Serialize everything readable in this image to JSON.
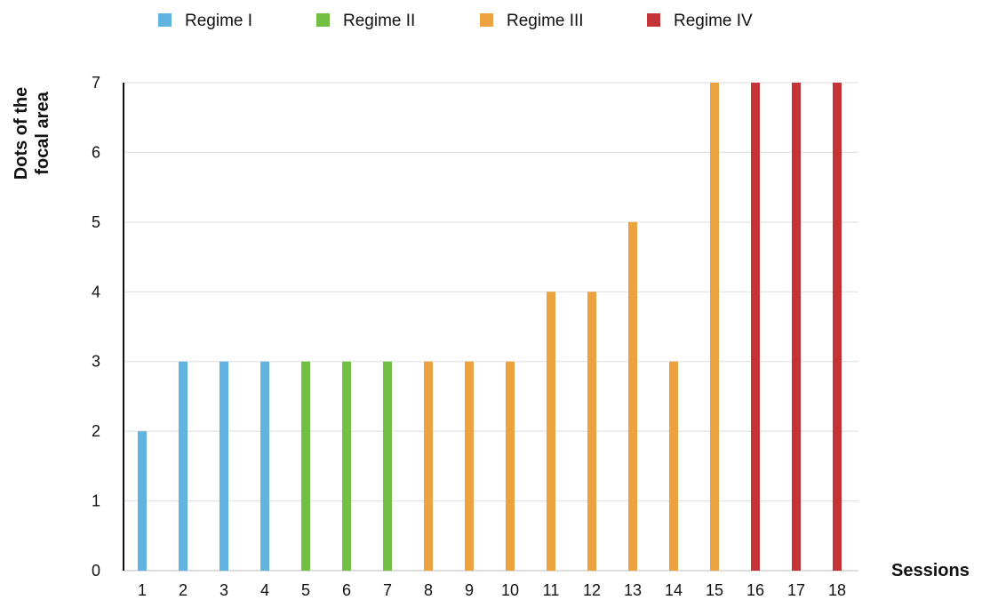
{
  "chart_data": {
    "type": "bar",
    "xlabel": "Sessions",
    "ylabel": [
      "Dots of the",
      "focal area"
    ],
    "ylim": [
      0,
      7
    ],
    "yticks": [
      0,
      1,
      2,
      3,
      4,
      5,
      6,
      7
    ],
    "grid": true,
    "legend_position": "top",
    "categories": [
      "1",
      "2",
      "3",
      "4",
      "5",
      "6",
      "7",
      "8",
      "9",
      "10",
      "11",
      "12",
      "13",
      "14",
      "15",
      "16",
      "17",
      "18"
    ],
    "series": [
      {
        "name": "Regime I",
        "color": "#62b3e0",
        "values": [
          2,
          3,
          3,
          3,
          null,
          null,
          null,
          null,
          null,
          null,
          null,
          null,
          null,
          null,
          null,
          null,
          null,
          null
        ]
      },
      {
        "name": "Regime II",
        "color": "#72c043",
        "values": [
          null,
          null,
          null,
          null,
          3,
          3,
          3,
          null,
          null,
          null,
          null,
          null,
          null,
          null,
          null,
          null,
          null,
          null
        ]
      },
      {
        "name": "Regime III",
        "color": "#eba23f",
        "values": [
          null,
          null,
          null,
          null,
          null,
          null,
          null,
          3,
          3,
          3,
          4,
          4,
          5,
          3,
          7,
          null,
          null,
          null
        ]
      },
      {
        "name": "Regime IV",
        "color": "#c63336",
        "values": [
          null,
          null,
          null,
          null,
          null,
          null,
          null,
          null,
          null,
          null,
          null,
          null,
          null,
          null,
          null,
          7,
          7,
          7
        ]
      }
    ]
  }
}
